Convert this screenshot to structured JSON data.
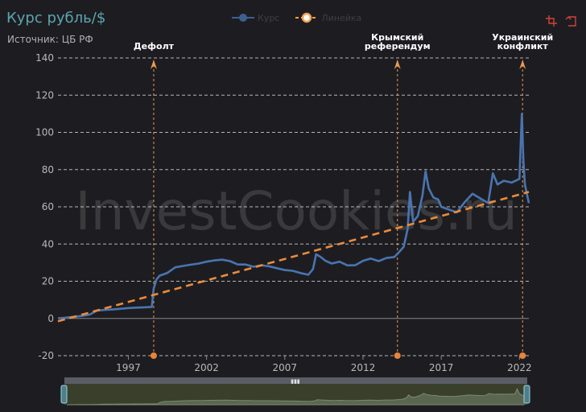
{
  "header": {
    "title": "Курс рубль/$",
    "subtitle": "Источник: ЦБ РФ"
  },
  "legend": [
    {
      "name": "Курс",
      "color": "#3d5f8f"
    },
    {
      "name": "Линейка",
      "color": "#f0a050"
    }
  ],
  "toolbox": [
    {
      "icon": "zoom-area-icon"
    },
    {
      "icon": "zoom-reset-icon"
    }
  ],
  "watermark": "InvestCookies.ru",
  "colors": {
    "accent": "#5ba6b0",
    "series_line": "#4a74b0",
    "trend_line": "#ec8b3a",
    "annotation": "#e89a4e"
  },
  "chart_data": {
    "type": "line",
    "x_range": [
      1992.5,
      2022.6
    ],
    "ylim": [
      -20,
      140
    ],
    "y_ticks": [
      -20,
      0,
      20,
      40,
      60,
      80,
      100,
      120,
      140
    ],
    "x_ticks": [
      "1997",
      "2002",
      "2007",
      "2012",
      "2017",
      "2022"
    ],
    "x_tick_values": [
      1997,
      2002,
      2007,
      2012,
      2017,
      2022
    ],
    "grid": true,
    "legend_position": "top-center",
    "series": [
      {
        "name": "Курс",
        "points": [
          [
            1992.5,
            0.1
          ],
          [
            1993.0,
            0.4
          ],
          [
            1993.5,
            0.9
          ],
          [
            1994.0,
            1.3
          ],
          [
            1994.5,
            2.0
          ],
          [
            1995.0,
            4.2
          ],
          [
            1995.5,
            4.6
          ],
          [
            1996.0,
            4.8
          ],
          [
            1996.5,
            5.2
          ],
          [
            1997.0,
            5.6
          ],
          [
            1997.5,
            5.8
          ],
          [
            1998.0,
            6.0
          ],
          [
            1998.5,
            6.2
          ],
          [
            1998.62,
            16.0
          ],
          [
            1998.8,
            21.0
          ],
          [
            1999.0,
            23.0
          ],
          [
            1999.5,
            24.5
          ],
          [
            2000.0,
            27.5
          ],
          [
            2000.5,
            28.2
          ],
          [
            2001.0,
            28.9
          ],
          [
            2001.5,
            29.5
          ],
          [
            2002.0,
            30.5
          ],
          [
            2002.5,
            31.2
          ],
          [
            2003.0,
            31.6
          ],
          [
            2003.5,
            30.8
          ],
          [
            2004.0,
            29.0
          ],
          [
            2004.5,
            29.0
          ],
          [
            2005.0,
            27.8
          ],
          [
            2005.5,
            28.6
          ],
          [
            2006.0,
            28.0
          ],
          [
            2006.5,
            27.0
          ],
          [
            2007.0,
            26.0
          ],
          [
            2007.5,
            25.6
          ],
          [
            2008.0,
            24.4
          ],
          [
            2008.5,
            23.5
          ],
          [
            2008.8,
            26.5
          ],
          [
            2009.0,
            34.5
          ],
          [
            2009.3,
            33.0
          ],
          [
            2009.6,
            31.0
          ],
          [
            2010.0,
            29.5
          ],
          [
            2010.5,
            30.5
          ],
          [
            2011.0,
            28.5
          ],
          [
            2011.5,
            28.6
          ],
          [
            2012.0,
            31.0
          ],
          [
            2012.5,
            32.2
          ],
          [
            2013.0,
            30.8
          ],
          [
            2013.5,
            32.5
          ],
          [
            2014.0,
            33.0
          ],
          [
            2014.3,
            35.6
          ],
          [
            2014.6,
            38.5
          ],
          [
            2014.85,
            48.0
          ],
          [
            2015.0,
            68.0
          ],
          [
            2015.2,
            52.0
          ],
          [
            2015.5,
            55.0
          ],
          [
            2015.8,
            66.0
          ],
          [
            2016.0,
            79.0
          ],
          [
            2016.2,
            70.0
          ],
          [
            2016.5,
            65.0
          ],
          [
            2016.8,
            64.0
          ],
          [
            2017.0,
            60.0
          ],
          [
            2017.5,
            58.5
          ],
          [
            2018.0,
            57.0
          ],
          [
            2018.5,
            62.5
          ],
          [
            2019.0,
            67.0
          ],
          [
            2019.5,
            64.5
          ],
          [
            2020.0,
            62.0
          ],
          [
            2020.3,
            78.0
          ],
          [
            2020.6,
            72.0
          ],
          [
            2021.0,
            74.0
          ],
          [
            2021.5,
            73.0
          ],
          [
            2022.0,
            75.0
          ],
          [
            2022.15,
            110.0
          ],
          [
            2022.25,
            85.0
          ],
          [
            2022.35,
            72.0
          ],
          [
            2022.6,
            62.0
          ]
        ]
      },
      {
        "name": "Линейка",
        "points": [
          [
            1992.5,
            -1.5
          ],
          [
            2022.6,
            68.0
          ]
        ]
      }
    ],
    "annotations": [
      {
        "label": "Дефолт",
        "x": 1998.62
      },
      {
        "label": "Крымский референдум",
        "x": 2014.2
      },
      {
        "label": "Украинский конфликт",
        "x": 2022.2
      }
    ]
  }
}
